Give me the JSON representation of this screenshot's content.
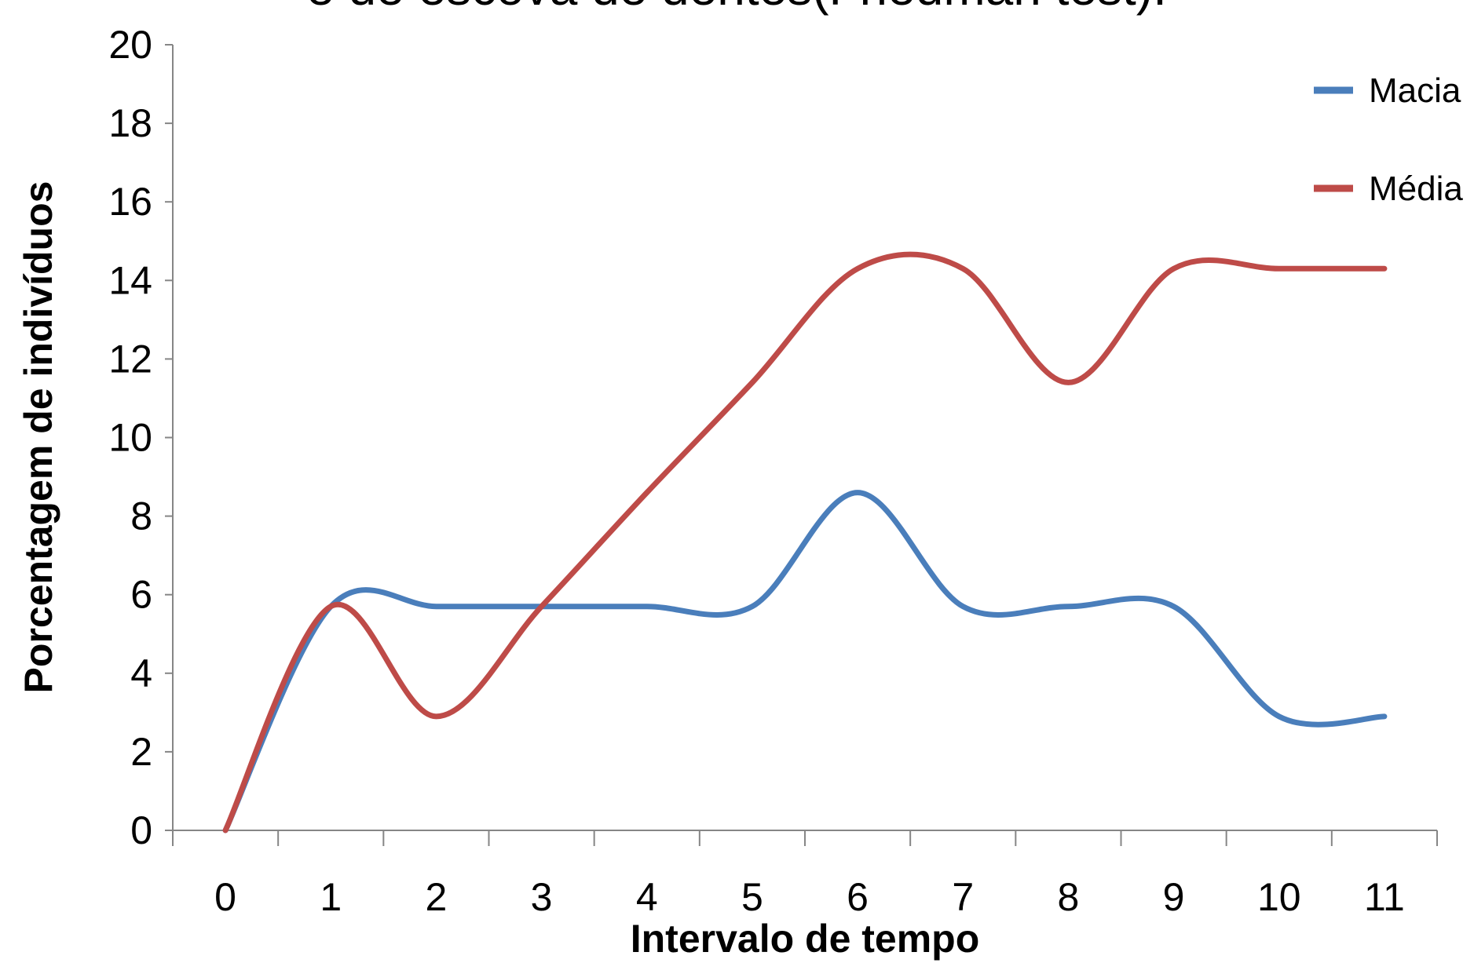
{
  "chart_data": {
    "type": "line",
    "title": "e de escova de dentes(Friedman test).",
    "xlabel": "Intervalo de tempo",
    "ylabel": "Porcentagem de indivíduos",
    "x": [
      0,
      1,
      2,
      3,
      4,
      5,
      6,
      7,
      8,
      9,
      10,
      11
    ],
    "xlim": [
      -0.5,
      11.5
    ],
    "ylim": [
      0,
      20
    ],
    "yticks": [
      0,
      2,
      4,
      6,
      8,
      10,
      12,
      14,
      16,
      18,
      20
    ],
    "grid": false,
    "legend_position": "right",
    "smooth": true,
    "series": [
      {
        "name": "Macia",
        "color": "#4a7ebb",
        "values": [
          0,
          5.7,
          5.7,
          5.7,
          5.7,
          5.7,
          8.6,
          5.7,
          5.7,
          5.7,
          2.9,
          2.9
        ]
      },
      {
        "name": "Média",
        "color": "#be4b48",
        "values": [
          0,
          5.7,
          2.9,
          5.7,
          8.6,
          11.4,
          14.3,
          14.3,
          11.4,
          14.3,
          14.3,
          14.3
        ]
      }
    ]
  }
}
